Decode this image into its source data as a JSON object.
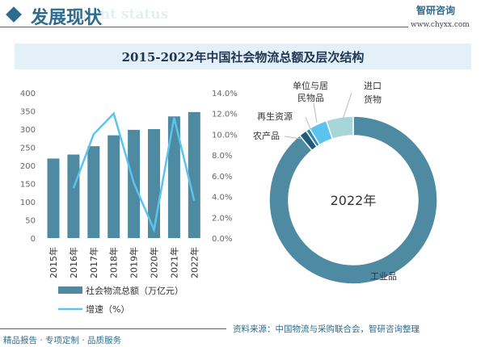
{
  "header": {
    "section_title": "发展现状",
    "section_subtitle": "ment status",
    "logo_text": "智研咨询",
    "url": "www.chyxx.com"
  },
  "footer": {
    "source": "资料来源：中国物流与采购联合会，智研咨询整理",
    "slogan": "精品报告 · 专项定制 · 品质服务"
  },
  "colors": {
    "bar": "#4f8aa3",
    "line": "#5bc4ec",
    "accent": "#2d6c8f"
  },
  "chart_data": [
    {
      "type": "bar+line",
      "title": "2015-2022年中国社会物流总额及层次结构",
      "categories": [
        "2015年",
        "2016年",
        "2017年",
        "2018年",
        "2019年",
        "2020年",
        "2021年",
        "2022年"
      ],
      "series": [
        {
          "name": "社会物流总额（万亿元）",
          "type": "bar",
          "axis": "left",
          "values": [
            219,
            230,
            253,
            283,
            298,
            300,
            335,
            347
          ]
        },
        {
          "name": "增速（%）",
          "type": "line",
          "axis": "right",
          "values": [
            null,
            4.8,
            10.0,
            12.0,
            5.3,
            0.8,
            11.6,
            3.6
          ]
        }
      ],
      "ylim": [
        0,
        400
      ],
      "yticks": [
        0,
        50,
        100,
        150,
        200,
        250,
        300,
        350,
        400
      ],
      "y2lim": [
        0,
        14
      ],
      "y2ticks": [
        "0.0%",
        "2.0%",
        "4.0%",
        "6.0%",
        "8.0%",
        "10.0%",
        "12.0%",
        "14.0%"
      ],
      "legend": "bottom",
      "grid": false
    },
    {
      "type": "pie",
      "donut": true,
      "center_label": "2022年",
      "slices": [
        {
          "label": "工业品",
          "value": 89.0,
          "color": "#4f8aa3"
        },
        {
          "label": "农产品",
          "value": 1.5,
          "color": "#1f5b78"
        },
        {
          "label": "再生资源",
          "value": 0.8,
          "color": "#2c86b4"
        },
        {
          "label": "单位与居民物品",
          "value": 3.5,
          "color": "#5bc4ec"
        },
        {
          "label": "进口货物",
          "value": 5.2,
          "color": "#a6d6d8"
        }
      ]
    }
  ]
}
